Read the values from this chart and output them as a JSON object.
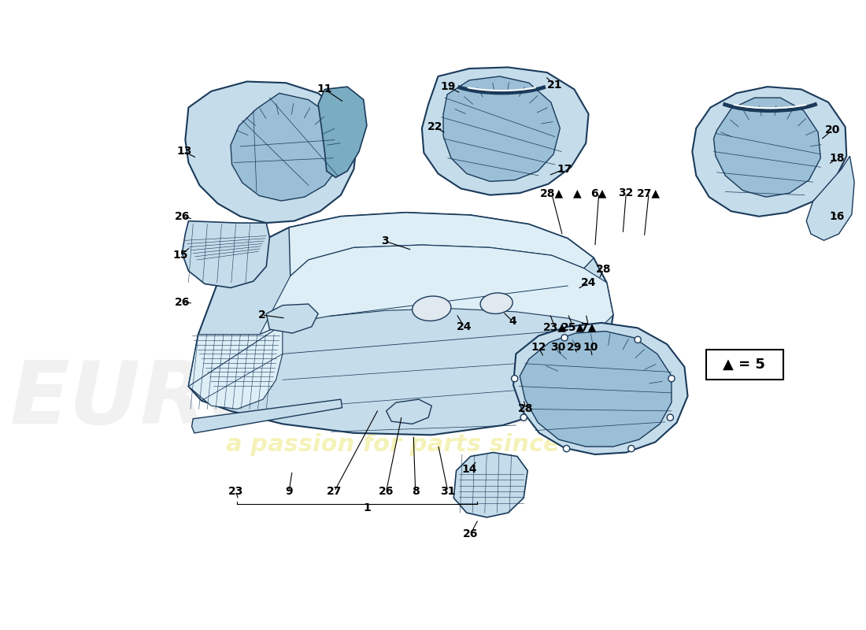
{
  "background_color": "#ffffff",
  "part_color_light": "#c5dcea",
  "part_color_mid": "#9bbfd6",
  "part_color_dark": "#7aacc2",
  "part_color_very_light": "#ddeef7",
  "line_color": "#1a3a5a",
  "watermark_color1": "#d8d8d8",
  "watermark_color2": "#e8e050",
  "callout_fontsize": 10
}
